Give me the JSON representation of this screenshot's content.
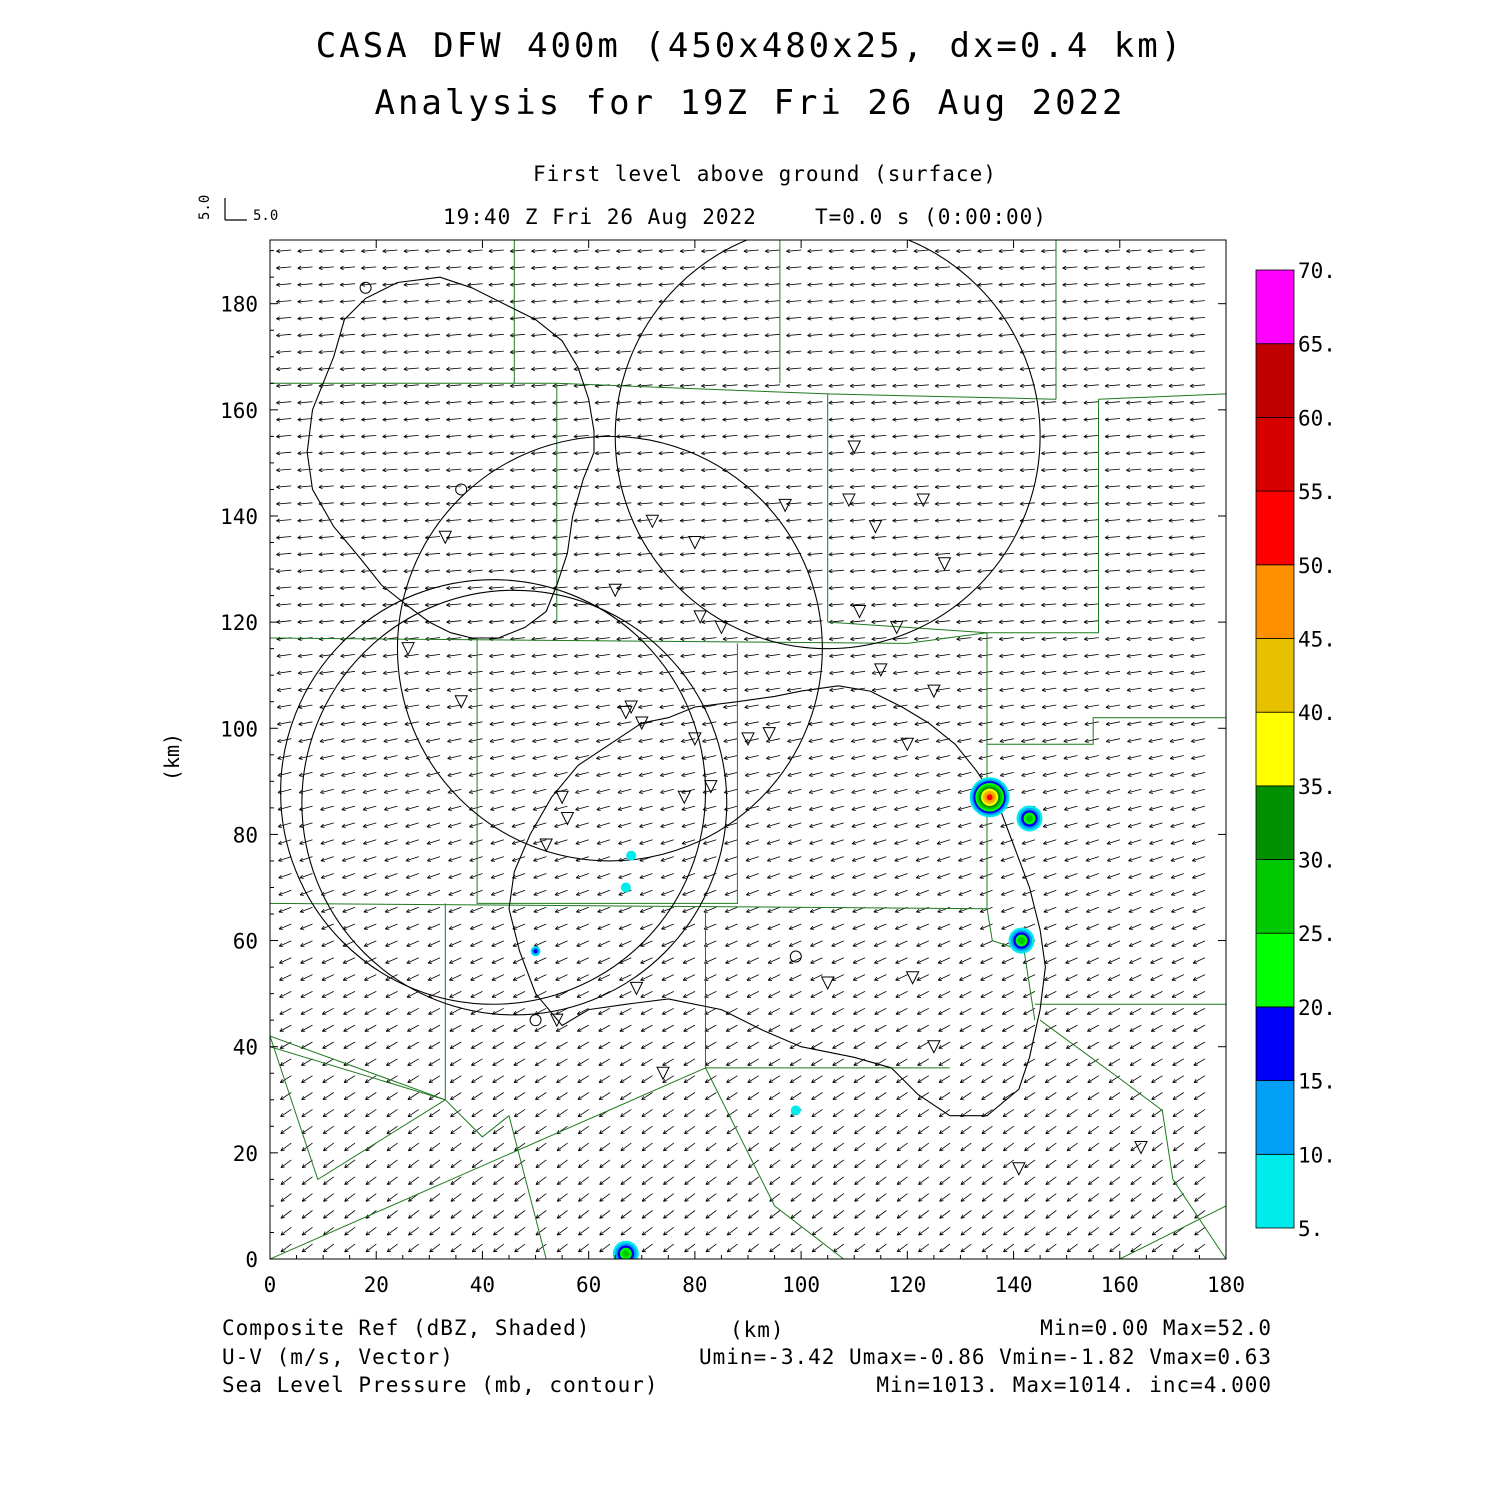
{
  "title": {
    "line1": "CASA DFW 400m (450x480x25, dx=0.4 km)",
    "line2": "Analysis for 19Z Fri 26 Aug 2022"
  },
  "subtitle": {
    "level": "First level above ground (surface)",
    "time": "19:40 Z Fri 26 Aug 2022",
    "elapsed": "T=0.0 s (0:00:00)"
  },
  "vector_key": {
    "v_label": "5.0",
    "u_label": "5.0"
  },
  "axes": {
    "x_label": "(km)",
    "y_label": "(km)",
    "x_ticks": [
      "0",
      "20",
      "40",
      "60",
      "80",
      "100",
      "120",
      "140",
      "160",
      "180"
    ],
    "y_ticks": [
      "0",
      "20",
      "40",
      "60",
      "80",
      "100",
      "120",
      "140",
      "160",
      "180"
    ],
    "x_range": [
      0,
      180
    ],
    "y_range": [
      0,
      192
    ]
  },
  "colorbar": {
    "labels": [
      "5.",
      "10.",
      "15.",
      "20.",
      "25.",
      "30.",
      "35.",
      "40.",
      "45.",
      "50.",
      "55.",
      "60.",
      "65.",
      "70."
    ],
    "colors": [
      "#00ecec",
      "#01a0f6",
      "#0000f6",
      "#00ff00",
      "#00c800",
      "#009000",
      "#ffff00",
      "#e7c000",
      "#ff9000",
      "#ff0000",
      "#d60000",
      "#c00000",
      "#ff00ff"
    ]
  },
  "footer": {
    "left": [
      "Composite Ref (dBZ, Shaded)",
      "U-V (m/s, Vector)",
      "Sea Level Pressure (mb, contour)"
    ],
    "center": "(km)",
    "right": [
      "Min=0.00 Max=52.0",
      "Umin=-3.42 Umax=-0.86 Vmin=-1.82 Vmax=0.63",
      "Min=1013. Max=1014. inc=4.000"
    ]
  },
  "map_data": {
    "radar_sites_km": [
      [
        105,
        155
      ],
      [
        64,
        115
      ],
      [
        42,
        88
      ],
      [
        46,
        86
      ]
    ],
    "radar_range_km": 40,
    "triangles_km": [
      [
        110,
        153
      ],
      [
        97,
        142
      ],
      [
        109,
        143
      ],
      [
        123,
        143
      ],
      [
        114,
        138
      ],
      [
        72,
        139
      ],
      [
        80,
        135
      ],
      [
        127,
        131
      ],
      [
        33,
        136
      ],
      [
        65,
        126
      ],
      [
        111,
        122
      ],
      [
        81,
        121
      ],
      [
        85,
        119
      ],
      [
        118,
        119
      ],
      [
        26,
        115
      ],
      [
        115,
        111
      ],
      [
        36,
        105
      ],
      [
        125,
        107
      ],
      [
        67,
        103
      ],
      [
        68,
        104
      ],
      [
        70,
        101
      ],
      [
        80,
        98
      ],
      [
        90,
        98
      ],
      [
        94,
        99
      ],
      [
        120,
        97
      ],
      [
        83,
        89
      ],
      [
        78,
        87
      ],
      [
        55,
        87
      ],
      [
        56,
        83
      ],
      [
        52,
        78
      ],
      [
        69,
        51
      ],
      [
        121,
        53
      ],
      [
        105,
        52
      ],
      [
        54,
        45
      ],
      [
        125,
        40
      ],
      [
        74,
        35
      ],
      [
        164,
        21
      ],
      [
        141,
        17
      ]
    ],
    "circles_km": [
      [
        18,
        183
      ],
      [
        36,
        145
      ],
      [
        99,
        57
      ],
      [
        50,
        45
      ]
    ],
    "contours_km": [
      [
        [
          10,
          165
        ],
        [
          12,
          170
        ],
        [
          14,
          177
        ],
        [
          18,
          181
        ],
        [
          24,
          184
        ],
        [
          32,
          185
        ],
        [
          38,
          183
        ],
        [
          44,
          180
        ],
        [
          50,
          177
        ],
        [
          55,
          173
        ],
        [
          58,
          168
        ],
        [
          60,
          162
        ],
        [
          61,
          156
        ],
        [
          61,
          152
        ],
        [
          59,
          147
        ],
        [
          57,
          140
        ],
        [
          56,
          133
        ],
        [
          54,
          127
        ],
        [
          52,
          122
        ],
        [
          48,
          119
        ],
        [
          43,
          117
        ],
        [
          38,
          117
        ],
        [
          34,
          118
        ],
        [
          30,
          120
        ],
        [
          26,
          123
        ],
        [
          21,
          127
        ],
        [
          17,
          132
        ],
        [
          12,
          138
        ],
        [
          8,
          145
        ],
        [
          7,
          152
        ],
        [
          8,
          160
        ],
        [
          10,
          165
        ]
      ],
      [
        [
          70,
          101
        ],
        [
          75,
          102
        ],
        [
          80,
          104
        ],
        [
          88,
          105
        ],
        [
          95,
          106
        ],
        [
          100,
          107
        ],
        [
          107,
          108
        ],
        [
          113,
          107
        ],
        [
          119,
          104
        ],
        [
          124,
          101
        ],
        [
          129,
          97
        ],
        [
          133,
          92
        ],
        [
          137,
          86
        ],
        [
          140,
          78
        ],
        [
          143,
          70
        ],
        [
          145,
          62
        ],
        [
          146,
          55
        ],
        [
          145,
          47
        ],
        [
          143,
          38
        ],
        [
          141,
          32
        ],
        [
          135,
          27
        ],
        [
          128,
          27
        ],
        [
          122,
          31
        ],
        [
          117,
          36
        ],
        [
          110,
          38
        ],
        [
          100,
          40
        ],
        [
          93,
          43
        ],
        [
          85,
          47
        ],
        [
          75,
          49
        ],
        [
          67,
          48
        ],
        [
          60,
          47
        ],
        [
          55,
          44
        ],
        [
          50,
          50
        ],
        [
          47,
          58
        ],
        [
          45,
          66
        ],
        [
          46,
          73
        ],
        [
          49,
          80
        ],
        [
          53,
          87
        ],
        [
          58,
          93
        ],
        [
          64,
          97
        ],
        [
          70,
          101
        ]
      ]
    ],
    "county_lines_km": [
      [
        [
          46,
          192
        ],
        [
          46,
          165
        ]
      ],
      [
        [
          96,
          192
        ],
        [
          96,
          165
        ]
      ],
      [
        [
          148,
          192
        ],
        [
          148,
          162
        ]
      ],
      [
        [
          0,
          165
        ],
        [
          54,
          165
        ],
        [
          54,
          120
        ]
      ],
      [
        [
          54,
          165
        ],
        [
          105,
          163
        ],
        [
          148,
          162
        ]
      ],
      [
        [
          105,
          163
        ],
        [
          105,
          120
        ]
      ],
      [
        [
          105,
          120
        ],
        [
          135,
          118
        ],
        [
          156,
          118
        ],
        [
          156,
          162
        ]
      ],
      [
        [
          156,
          162
        ],
        [
          180,
          163
        ]
      ],
      [
        [
          0,
          117
        ],
        [
          120,
          116
        ],
        [
          135,
          118
        ]
      ],
      [
        [
          39,
          117
        ],
        [
          39,
          67
        ],
        [
          88,
          67
        ],
        [
          88,
          116
        ]
      ],
      [
        [
          0,
          67
        ],
        [
          135,
          66
        ],
        [
          136,
          60
        ],
        [
          142,
          58
        ],
        [
          144,
          45
        ]
      ],
      [
        [
          135,
          118
        ],
        [
          135,
          66
        ]
      ],
      [
        [
          135,
          97
        ],
        [
          155,
          97
        ],
        [
          155,
          102
        ],
        [
          180,
          102
        ]
      ],
      [
        [
          144,
          48
        ],
        [
          180,
          48
        ]
      ],
      [
        [
          82,
          66
        ],
        [
          82,
          36
        ],
        [
          0,
          0
        ]
      ],
      [
        [
          33,
          67
        ],
        [
          33,
          30
        ],
        [
          0,
          42
        ]
      ],
      [
        [
          0,
          40
        ],
        [
          33,
          30
        ],
        [
          40,
          23
        ],
        [
          45,
          27
        ],
        [
          52,
          0
        ]
      ],
      [
        [
          82,
          36
        ],
        [
          95,
          10
        ],
        [
          108,
          0
        ]
      ],
      [
        [
          82,
          36
        ],
        [
          128,
          36
        ]
      ],
      [
        [
          145,
          45
        ],
        [
          160,
          34
        ],
        [
          168,
          28
        ],
        [
          170,
          15
        ],
        [
          180,
          0
        ]
      ],
      [
        [
          160,
          0
        ],
        [
          180,
          10
        ]
      ],
      [
        [
          0,
          42
        ],
        [
          9,
          15
        ],
        [
          33,
          30
        ]
      ]
    ],
    "reflectivity_blobs": [
      {
        "x_km": 135.5,
        "y_km": 87,
        "peak_dbz": 52
      },
      {
        "x_km": 143,
        "y_km": 83,
        "peak_dbz": 25
      },
      {
        "x_km": 141.5,
        "y_km": 60,
        "peak_dbz": 27
      },
      {
        "x_km": 67,
        "y_km": 1,
        "peak_dbz": 28
      },
      {
        "x_km": 68,
        "y_km": 76,
        "peak_dbz": 8
      },
      {
        "x_km": 67,
        "y_km": 70,
        "peak_dbz": 8
      },
      {
        "x_km": 50,
        "y_km": 58,
        "peak_dbz": 15
      },
      {
        "x_km": 99,
        "y_km": 28,
        "peak_dbz": 7
      }
    ],
    "wind_field": {
      "u_north": -2.3,
      "v_north": -0.2,
      "u_south": -1.6,
      "v_south": -1.2
    }
  }
}
